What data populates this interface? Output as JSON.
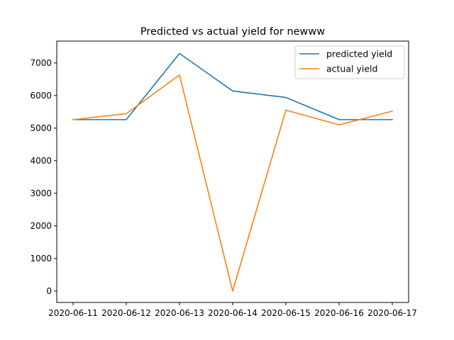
{
  "chart_data": {
    "type": "line",
    "title": "Predicted vs actual yield for newww",
    "xlabel": "",
    "ylabel": "",
    "categories": [
      "2020-06-11",
      "2020-06-12",
      "2020-06-13",
      "2020-06-14",
      "2020-06-15",
      "2020-06-16",
      "2020-06-17"
    ],
    "ylim": [
      -350,
      7670
    ],
    "yticks": [
      0,
      1000,
      2000,
      3000,
      4000,
      5000,
      6000,
      7000
    ],
    "grid": false,
    "legend_position": "top-right",
    "series": [
      {
        "name": "predicted yield",
        "color": "#1f77b4",
        "values": [
          5260,
          5260,
          7290,
          6140,
          5940,
          5260,
          5260
        ]
      },
      {
        "name": "actual yield",
        "color": "#ff7f0e",
        "values": [
          5260,
          5440,
          6630,
          0,
          5550,
          5100,
          5520
        ]
      }
    ]
  }
}
